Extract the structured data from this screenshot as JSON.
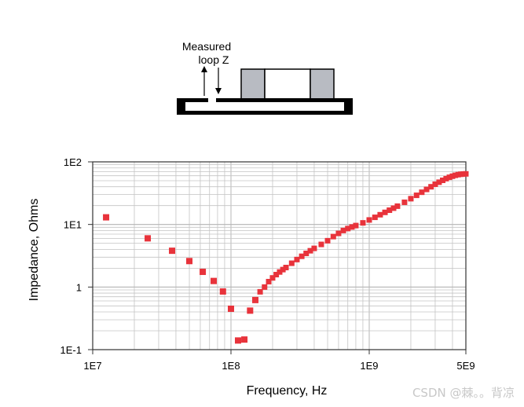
{
  "diagram": {
    "label_line1": "Measured",
    "label_line2": "loop Z"
  },
  "watermark": "CSDN @棘。。背凉",
  "chart_data": {
    "type": "scatter",
    "title": "",
    "xlabel": "Frequency, Hz",
    "ylabel": "Impedance, Ohms",
    "x_scale": "log",
    "y_scale": "log",
    "xlim": [
      10000000,
      5000000000
    ],
    "ylim": [
      0.1,
      100
    ],
    "x_ticks": [
      {
        "value": 10000000,
        "label": "1E7"
      },
      {
        "value": 100000000,
        "label": "1E8"
      },
      {
        "value": 1000000000,
        "label": "1E9"
      },
      {
        "value": 5000000000,
        "label": "5E9"
      }
    ],
    "y_ticks": [
      {
        "value": 0.1,
        "label": "1E-1"
      },
      {
        "value": 1,
        "label": "1"
      },
      {
        "value": 10,
        "label": "1E1"
      },
      {
        "value": 100,
        "label": "1E2"
      }
    ],
    "grid": true,
    "marker_color": "#e8333b",
    "series": [
      {
        "x": [
          12500000,
          25000000,
          37500000,
          50000000,
          62500000,
          75000000,
          87500000,
          100000000,
          112500000,
          125000000,
          137500000,
          150000000,
          162500000,
          175000000,
          187500000,
          200000000,
          212500000,
          225000000,
          237500000,
          250000000,
          275000000,
          300000000,
          325000000,
          350000000,
          375000000,
          400000000,
          450000000,
          500000000,
          550000000,
          600000000,
          650000000,
          700000000,
          750000000,
          800000000,
          900000000,
          1000000000,
          1100000000,
          1200000000,
          1300000000,
          1400000000,
          1500000000,
          1600000000,
          1800000000,
          2000000000,
          2200000000,
          2400000000,
          2600000000,
          2800000000,
          3000000000,
          3200000000,
          3400000000,
          3600000000,
          3800000000,
          4000000000,
          4200000000,
          4400000000,
          4600000000,
          4800000000,
          5000000000
        ],
        "y": [
          13,
          6,
          3.8,
          2.6,
          1.75,
          1.25,
          0.85,
          0.45,
          0.14,
          0.145,
          0.42,
          0.62,
          0.84,
          1.0,
          1.22,
          1.4,
          1.58,
          1.74,
          1.9,
          2.05,
          2.4,
          2.75,
          3.1,
          3.45,
          3.8,
          4.15,
          4.8,
          5.5,
          6.4,
          7.2,
          8.0,
          8.6,
          9.1,
          9.6,
          10.6,
          11.8,
          13.0,
          14.3,
          15.6,
          16.9,
          18.2,
          19.6,
          22.6,
          25.8,
          29.2,
          32.7,
          36.3,
          40.0,
          43.9,
          47.3,
          50.7,
          53.9,
          56.7,
          59.0,
          61.0,
          62.5,
          63.4,
          64.0,
          64.3
        ]
      }
    ]
  }
}
